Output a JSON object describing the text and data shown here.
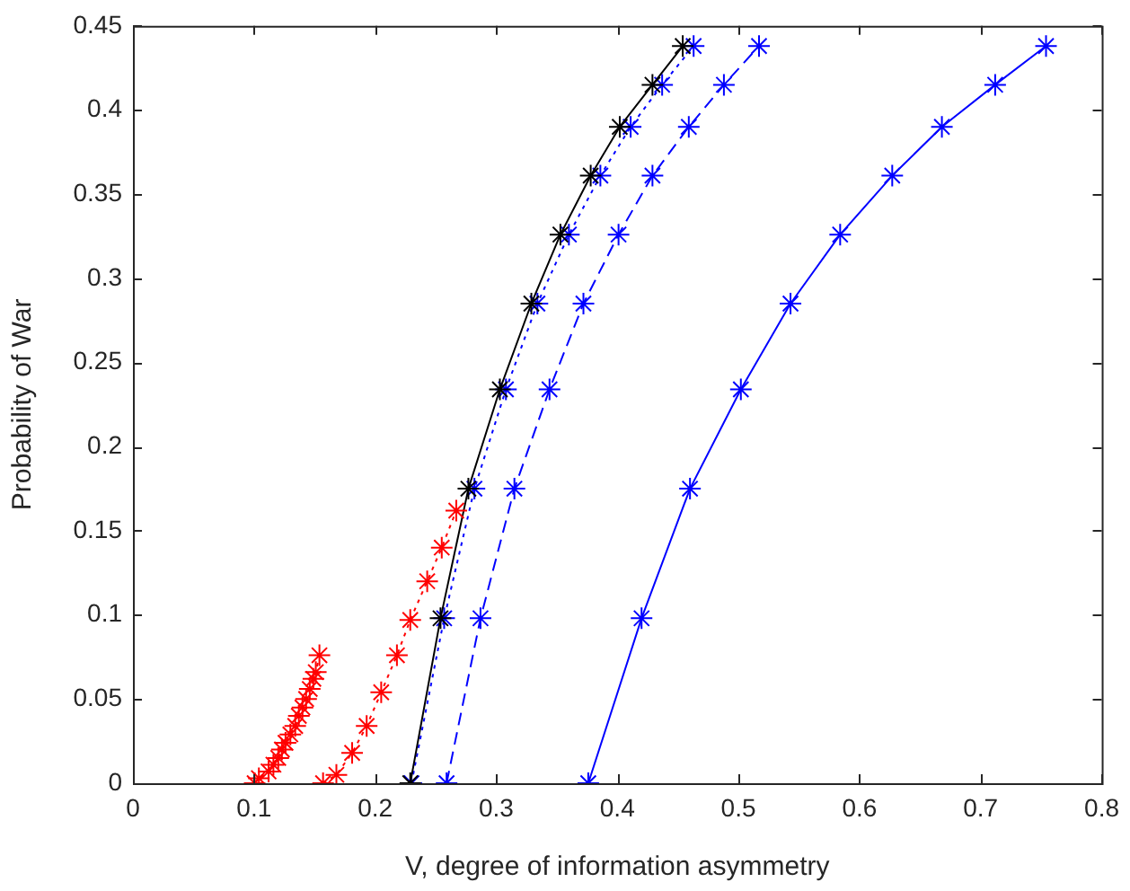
{
  "chart_data": {
    "type": "line",
    "xlabel": "V, degree of information asymmetry",
    "ylabel": "Probability of War",
    "xlim": [
      0,
      0.8
    ],
    "xticks": [
      0,
      0.1,
      0.2,
      0.3,
      0.4,
      0.5,
      0.6,
      0.7,
      0.8
    ],
    "ylim": [
      0,
      0.45
    ],
    "yticks": [
      0,
      0.05,
      0.1,
      0.15,
      0.2,
      0.25,
      0.3,
      0.35,
      0.4,
      0.45
    ],
    "grid": false,
    "legend": false,
    "series": [
      {
        "color": "#ff0000",
        "marker": "cross",
        "line_style": "dotted",
        "x": [
          0.1005,
          0.104,
          0.112,
          0.116,
          0.12,
          0.123,
          0.126,
          0.13,
          0.134,
          0.137,
          0.14,
          0.143,
          0.146,
          0.149,
          0.151,
          0.154
        ],
        "values": [
          0,
          0.003,
          0.007,
          0.011,
          0.015,
          0.02,
          0.024,
          0.029,
          0.034,
          0.04,
          0.045,
          0.05,
          0.056,
          0.062,
          0.066,
          0.076
        ]
      },
      {
        "color": "#ff0000",
        "marker": "cross",
        "line_style": "dotted",
        "x": [
          0.157,
          0.168,
          0.181,
          0.193,
          0.205,
          0.218,
          0.229,
          0.243,
          0.255,
          0.267
        ],
        "values": [
          0,
          0.005,
          0.018,
          0.034,
          0.054,
          0.076,
          0.097,
          0.12,
          0.14,
          0.162
        ]
      },
      {
        "color": "#000000",
        "marker": "cross",
        "line_style": "solid",
        "x": [
          0.229,
          0.254,
          0.277,
          0.303,
          0.329,
          0.353,
          0.378,
          0.402,
          0.429,
          0.454
        ],
        "values": [
          0,
          0.098,
          0.175,
          0.234,
          0.285,
          0.326,
          0.361,
          0.39,
          0.415,
          0.438
        ]
      },
      {
        "color": "#0000ff",
        "marker": "cross",
        "line_style": "dotted",
        "x": [
          0.23,
          0.257,
          0.282,
          0.308,
          0.334,
          0.36,
          0.386,
          0.411,
          0.437,
          0.463
        ],
        "values": [
          0,
          0.098,
          0.175,
          0.234,
          0.285,
          0.326,
          0.361,
          0.39,
          0.415,
          0.438
        ]
      },
      {
        "color": "#0000ff",
        "marker": "cross",
        "line_style": "dashed",
        "x": [
          0.259,
          0.287,
          0.315,
          0.344,
          0.372,
          0.401,
          0.429,
          0.459,
          0.488,
          0.517
        ],
        "values": [
          0,
          0.098,
          0.175,
          0.234,
          0.285,
          0.326,
          0.361,
          0.39,
          0.415,
          0.438
        ]
      },
      {
        "color": "#0000ff",
        "marker": "cross",
        "line_style": "solid",
        "x": [
          0.376,
          0.42,
          0.46,
          0.502,
          0.543,
          0.584,
          0.627,
          0.668,
          0.712,
          0.754
        ],
        "values": [
          0,
          0.098,
          0.175,
          0.234,
          0.285,
          0.326,
          0.361,
          0.39,
          0.415,
          0.438
        ]
      }
    ]
  }
}
